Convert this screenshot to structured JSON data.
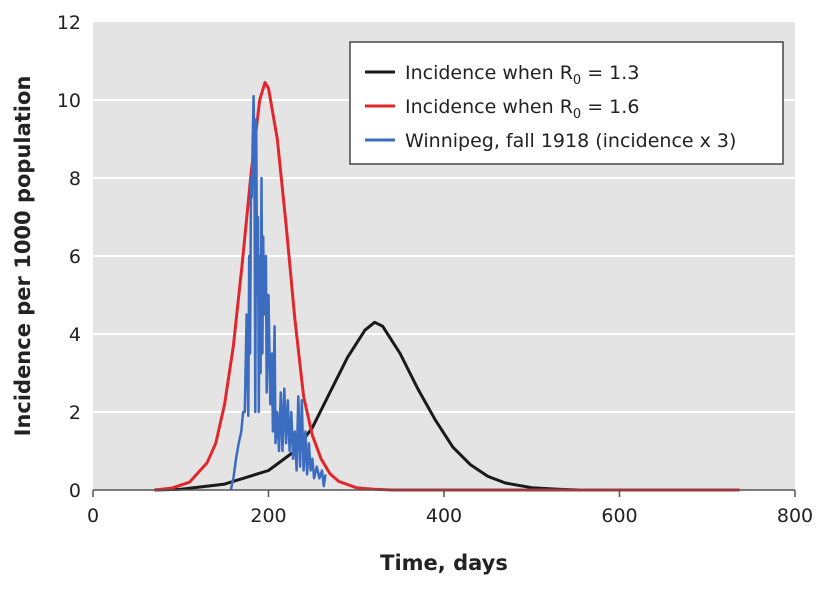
{
  "chart_data": {
    "type": "line",
    "title": "",
    "xlabel": "Time, days",
    "ylabel": "Incidence per 1000 population",
    "xlim": [
      0,
      800
    ],
    "ylim": [
      0,
      12
    ],
    "xticks": [
      0,
      200,
      400,
      600,
      800
    ],
    "yticks": [
      0,
      2,
      4,
      6,
      8,
      10,
      12
    ],
    "grid": "horizontal",
    "legend_position": "top-right",
    "colors": {
      "plot_bg": "#e4e4e4",
      "black": "#1a1a1a",
      "red": "#e3262b",
      "blue": "#3b6cc0"
    },
    "series": [
      {
        "name": "Incidence when R0 = 1.3",
        "label_main": "Incidence when R",
        "label_sub": "0",
        "label_tail": " = 1.3",
        "color": "#1a1a1a",
        "points": [
          [
            70,
            0
          ],
          [
            100,
            0.02
          ],
          [
            150,
            0.15
          ],
          [
            200,
            0.5
          ],
          [
            230,
            1.0
          ],
          [
            250,
            1.6
          ],
          [
            270,
            2.5
          ],
          [
            290,
            3.4
          ],
          [
            310,
            4.1
          ],
          [
            321,
            4.3
          ],
          [
            330,
            4.2
          ],
          [
            350,
            3.5
          ],
          [
            370,
            2.6
          ],
          [
            390,
            1.8
          ],
          [
            410,
            1.1
          ],
          [
            430,
            0.65
          ],
          [
            450,
            0.35
          ],
          [
            470,
            0.18
          ],
          [
            500,
            0.06
          ],
          [
            530,
            0.02
          ],
          [
            555,
            0
          ]
        ]
      },
      {
        "name": "Incidence when R0 = 1.6",
        "label_main": "Incidence when R",
        "label_sub": "0",
        "label_tail": " = 1.6",
        "color": "#e3262b",
        "points": [
          [
            70,
            0
          ],
          [
            90,
            0.05
          ],
          [
            110,
            0.2
          ],
          [
            130,
            0.7
          ],
          [
            140,
            1.2
          ],
          [
            150,
            2.2
          ],
          [
            160,
            3.7
          ],
          [
            170,
            5.8
          ],
          [
            180,
            8.1
          ],
          [
            190,
            10.0
          ],
          [
            196,
            10.45
          ],
          [
            200,
            10.3
          ],
          [
            210,
            9.0
          ],
          [
            220,
            6.8
          ],
          [
            230,
            4.4
          ],
          [
            240,
            2.4
          ],
          [
            250,
            1.4
          ],
          [
            260,
            0.8
          ],
          [
            270,
            0.42
          ],
          [
            280,
            0.22
          ],
          [
            300,
            0.06
          ],
          [
            320,
            0.02
          ],
          [
            340,
            0
          ],
          [
            737,
            0
          ]
        ]
      },
      {
        "name": "Winnipeg, fall 1918 (incidence x 3)",
        "label_main": "Winnipeg, fall 1918 (incidence x 3)",
        "label_sub": "",
        "label_tail": "",
        "color": "#3b6cc0",
        "points": [
          [
            157,
            0
          ],
          [
            160,
            0.3
          ],
          [
            163,
            0.8
          ],
          [
            166,
            1.2
          ],
          [
            169,
            1.5
          ],
          [
            171,
            2.0
          ],
          [
            173,
            2.0
          ],
          [
            175,
            4.5
          ],
          [
            177,
            1.9
          ],
          [
            178,
            6.0
          ],
          [
            179,
            3.5
          ],
          [
            180,
            8.0
          ],
          [
            181,
            7.5
          ],
          [
            182,
            9.0
          ],
          [
            183,
            10.1
          ],
          [
            184,
            8.0
          ],
          [
            185,
            2.0
          ],
          [
            186,
            9.5
          ],
          [
            187,
            5.0
          ],
          [
            188,
            7.0
          ],
          [
            189,
            2.0
          ],
          [
            190,
            6.0
          ],
          [
            191,
            3.0
          ],
          [
            192,
            8.0
          ],
          [
            193,
            3.5
          ],
          [
            194,
            6.5
          ],
          [
            195,
            4.5
          ],
          [
            197,
            6.0
          ],
          [
            198,
            2.5
          ],
          [
            200,
            5.0
          ],
          [
            202,
            2.2
          ],
          [
            204,
            3.5
          ],
          [
            205,
            1.5
          ],
          [
            207,
            4.2
          ],
          [
            208,
            1.2
          ],
          [
            210,
            2.0
          ],
          [
            212,
            1.0
          ],
          [
            214,
            2.5
          ],
          [
            216,
            1.0
          ],
          [
            218,
            2.6
          ],
          [
            220,
            1.2
          ],
          [
            222,
            2.3
          ],
          [
            224,
            1.0
          ],
          [
            226,
            2.0
          ],
          [
            228,
            0.8
          ],
          [
            230,
            1.5
          ],
          [
            232,
            0.5
          ],
          [
            234,
            2.4
          ],
          [
            236,
            0.6
          ],
          [
            238,
            2.3
          ],
          [
            240,
            0.5
          ],
          [
            242,
            1.5
          ],
          [
            244,
            0.4
          ],
          [
            246,
            1.2
          ],
          [
            248,
            0.5
          ],
          [
            250,
            0.8
          ],
          [
            252,
            0.3
          ],
          [
            255,
            0.6
          ],
          [
            258,
            0.3
          ],
          [
            261,
            0.5
          ],
          [
            263,
            0.1
          ],
          [
            265,
            0.4
          ]
        ]
      }
    ]
  }
}
